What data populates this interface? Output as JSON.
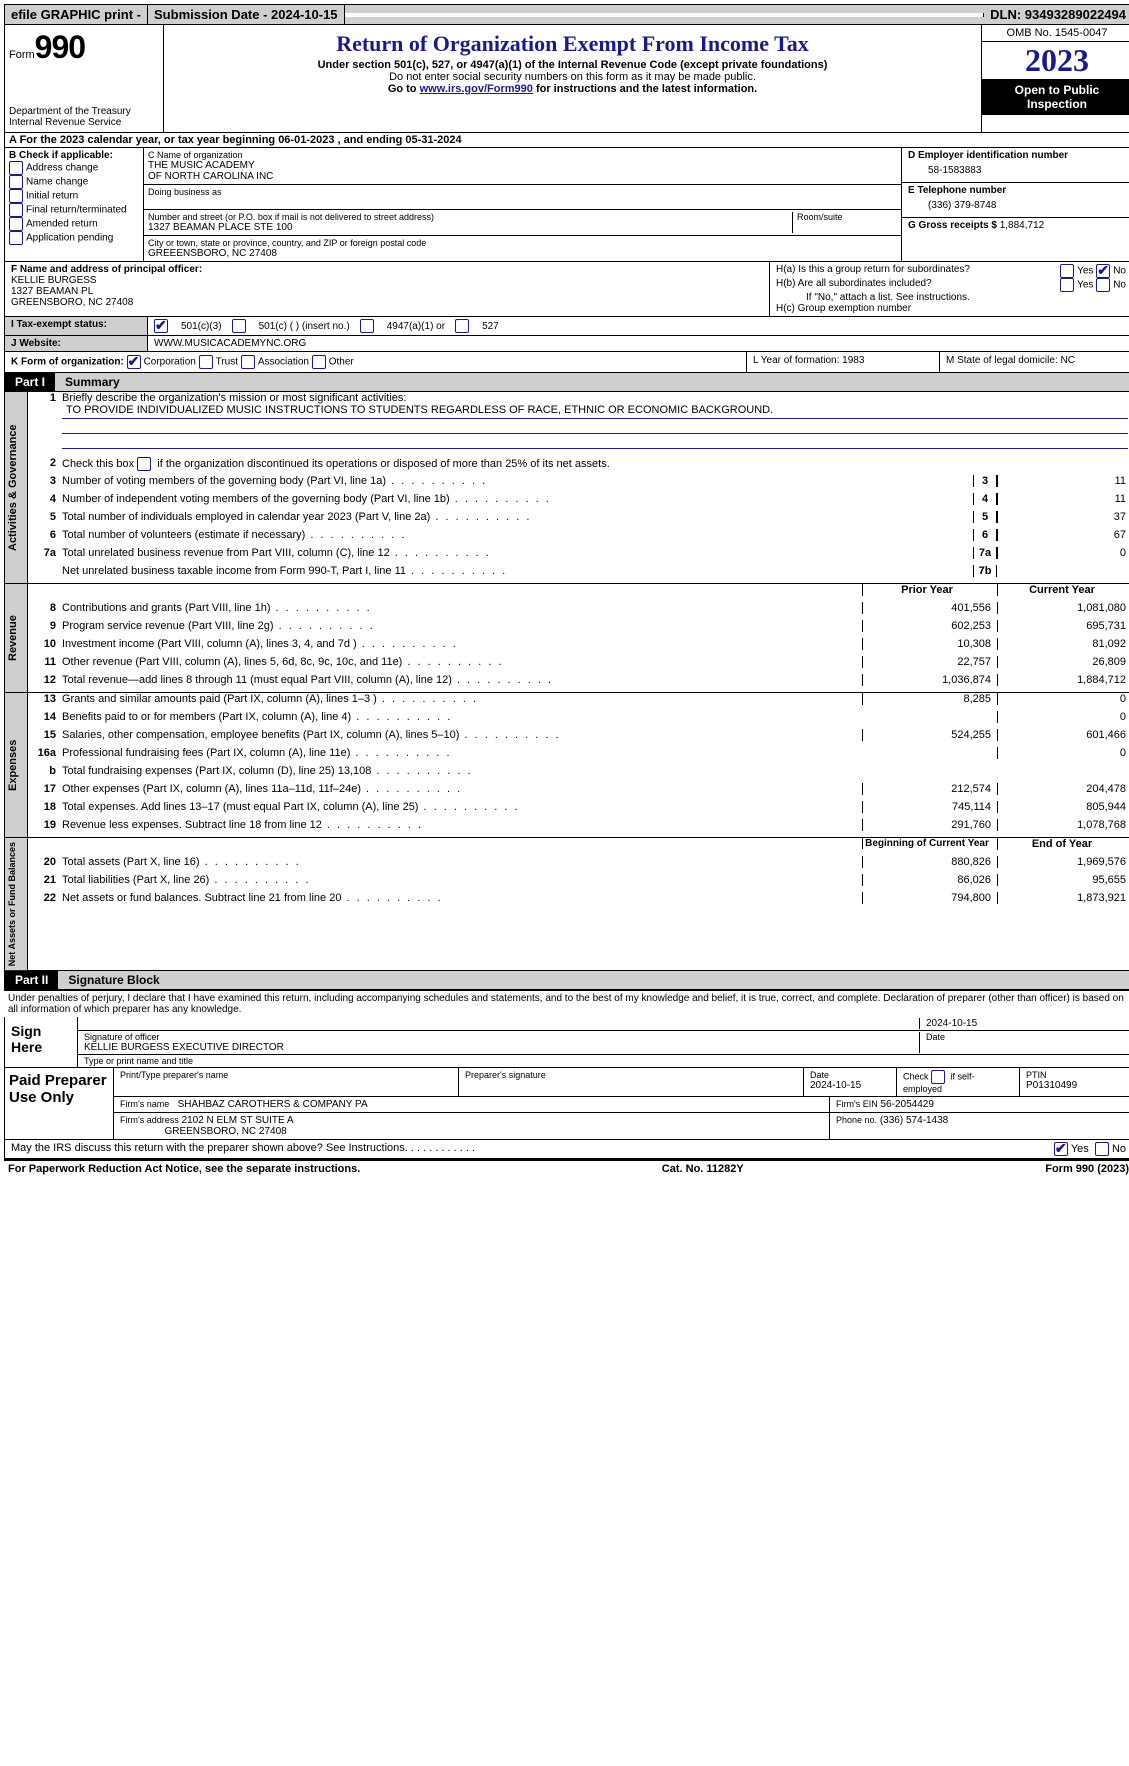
{
  "topbar": {
    "efile": "efile GRAPHIC print -",
    "submission": "Submission Date - 2024-10-15",
    "dln": "DLN: 93493289022494"
  },
  "header": {
    "form_label": "Form",
    "form_num": "990",
    "dept": "Department of the Treasury Internal Revenue Service",
    "title": "Return of Organization Exempt From Income Tax",
    "sub1": "Under section 501(c), 527, or 4947(a)(1) of the Internal Revenue Code (except private foundations)",
    "sub2": "Do not enter social security numbers on this form as it may be made public.",
    "sub3_prefix": "Go to ",
    "sub3_link": "www.irs.gov/Form990",
    "sub3_suffix": " for instructions and the latest information.",
    "omb": "OMB No. 1545-0047",
    "year": "2023",
    "open_public": "Open to Public Inspection"
  },
  "row_a": "A  For the 2023 calendar year, or tax year beginning 06-01-2023   , and ending 05-31-2024",
  "col_b": {
    "title": "B Check if applicable:",
    "items": [
      "Address change",
      "Name change",
      "Initial return",
      "Final return/terminated",
      "Amended return",
      "Application pending"
    ]
  },
  "col_c": {
    "name_label": "C Name of organization",
    "name": "THE MUSIC ACADEMY\nOF NORTH CAROLINA INC",
    "dba_label": "Doing business as",
    "addr_label": "Number and street (or P.O. box if mail is not delivered to street address)",
    "addr": "1327 BEAMAN PLACE STE 100",
    "room_label": "Room/suite",
    "city_label": "City or town, state or province, country, and ZIP or foreign postal code",
    "city": "GREEENSBORO, NC  27408"
  },
  "col_d": {
    "ein_label": "D Employer identification number",
    "ein": "58-1583883",
    "phone_label": "E Telephone number",
    "phone": "(336) 379-8748",
    "gross_label": "G Gross receipts $",
    "gross": "1,884,712"
  },
  "block_f": {
    "label": "F  Name and address of principal officer:",
    "name": "KELLIE BURGESS",
    "addr1": "1327 BEAMAN PL",
    "addr2": "GREENSBORO, NC  27408"
  },
  "block_h": {
    "a": "H(a)  Is this a group return for subordinates?",
    "b": "H(b)  Are all subordinates included?",
    "note": "If \"No,\" attach a list. See instructions.",
    "c": "H(c)  Group exemption number"
  },
  "tax_status": {
    "label": "I   Tax-exempt status:",
    "opt1": "501(c)(3)",
    "opt2": "501(c) (  ) (insert no.)",
    "opt3": "4947(a)(1) or",
    "opt4": "527"
  },
  "website": {
    "label": "J   Website:",
    "value": "WWW.MUSICACADEMYNC.ORG"
  },
  "form_org": {
    "k": "K Form of organization:",
    "opts": [
      "Corporation",
      "Trust",
      "Association",
      "Other"
    ],
    "l": "L Year of formation: 1983",
    "m": "M State of legal domicile: NC"
  },
  "parts": {
    "p1": {
      "num": "Part I",
      "title": "Summary"
    },
    "p2": {
      "num": "Part II",
      "title": "Signature Block"
    }
  },
  "mission": {
    "label": "Briefly describe the organization's mission or most significant activities:",
    "text": "TO PROVIDE INDIVIDUALIZED MUSIC INSTRUCTIONS TO STUDENTS REGARDLESS OF RACE, ETHNIC OR ECONOMIC BACKGROUND."
  },
  "gov_lines": {
    "l2": "Check this box      if the organization discontinued its operations or disposed of more than 25% of its net assets.",
    "l3": {
      "desc": "Number of voting members of the governing body (Part VI, line 1a)",
      "box": "3",
      "val": "11"
    },
    "l4": {
      "desc": "Number of independent voting members of the governing body (Part VI, line 1b)",
      "box": "4",
      "val": "11"
    },
    "l5": {
      "desc": "Total number of individuals employed in calendar year 2023 (Part V, line 2a)",
      "box": "5",
      "val": "37"
    },
    "l6": {
      "desc": "Total number of volunteers (estimate if necessary)",
      "box": "6",
      "val": "67"
    },
    "l7a": {
      "desc": "Total unrelated business revenue from Part VIII, column (C), line 12",
      "box": "7a",
      "val": "0"
    },
    "l7b": {
      "desc": "Net unrelated business taxable income from Form 990-T, Part I, line 11",
      "box": "7b",
      "val": ""
    }
  },
  "rev_header": {
    "prior": "Prior Year",
    "curr": "Current Year"
  },
  "revenue": [
    {
      "n": "8",
      "d": "Contributions and grants (Part VIII, line 1h)",
      "p": "401,556",
      "c": "1,081,080"
    },
    {
      "n": "9",
      "d": "Program service revenue (Part VIII, line 2g)",
      "p": "602,253",
      "c": "695,731"
    },
    {
      "n": "10",
      "d": "Investment income (Part VIII, column (A), lines 3, 4, and 7d )",
      "p": "10,308",
      "c": "81,092"
    },
    {
      "n": "11",
      "d": "Other revenue (Part VIII, column (A), lines 5, 6d, 8c, 9c, 10c, and 11e)",
      "p": "22,757",
      "c": "26,809"
    },
    {
      "n": "12",
      "d": "Total revenue—add lines 8 through 11 (must equal Part VIII, column (A), line 12)",
      "p": "1,036,874",
      "c": "1,884,712"
    }
  ],
  "expenses": [
    {
      "n": "13",
      "d": "Grants and similar amounts paid (Part IX, column (A), lines 1–3 )",
      "p": "8,285",
      "c": "0"
    },
    {
      "n": "14",
      "d": "Benefits paid to or for members (Part IX, column (A), line 4)",
      "p": "",
      "c": "0"
    },
    {
      "n": "15",
      "d": "Salaries, other compensation, employee benefits (Part IX, column (A), lines 5–10)",
      "p": "524,255",
      "c": "601,466"
    },
    {
      "n": "16a",
      "d": "Professional fundraising fees (Part IX, column (A), line 11e)",
      "p": "",
      "c": "0"
    },
    {
      "n": "b",
      "d": "Total fundraising expenses (Part IX, column (D), line 25) 13,108",
      "p": "grey",
      "c": "grey"
    },
    {
      "n": "17",
      "d": "Other expenses (Part IX, column (A), lines 11a–11d, 11f–24e)",
      "p": "212,574",
      "c": "204,478"
    },
    {
      "n": "18",
      "d": "Total expenses. Add lines 13–17 (must equal Part IX, column (A), line 25)",
      "p": "745,114",
      "c": "805,944"
    },
    {
      "n": "19",
      "d": "Revenue less expenses. Subtract line 18 from line 12",
      "p": "291,760",
      "c": "1,078,768"
    }
  ],
  "net_header": {
    "prior": "Beginning of Current Year",
    "curr": "End of Year"
  },
  "net": [
    {
      "n": "20",
      "d": "Total assets (Part X, line 16)",
      "p": "880,826",
      "c": "1,969,576"
    },
    {
      "n": "21",
      "d": "Total liabilities (Part X, line 26)",
      "p": "86,026",
      "c": "95,655"
    },
    {
      "n": "22",
      "d": "Net assets or fund balances. Subtract line 21 from line 20",
      "p": "794,800",
      "c": "1,873,921"
    }
  ],
  "vtabs": {
    "gov": "Activities & Governance",
    "rev": "Revenue",
    "exp": "Expenses",
    "net": "Net Assets or Fund Balances"
  },
  "perjury": "Under penalties of perjury, I declare that I have examined this return, including accompanying schedules and statements, and to the best of my knowledge and belief, it is true, correct, and complete. Declaration of preparer (other than officer) is based on all information of which preparer has any knowledge.",
  "sign": {
    "label": "Sign Here",
    "date": "2024-10-15",
    "officer_label": "Signature of officer",
    "officer": "KELLIE BURGESS EXECUTIVE DIRECTOR",
    "name_label": "Type or print name and title",
    "date_label": "Date"
  },
  "preparer": {
    "label": "Paid Preparer Use Only",
    "h1": "Print/Type preparer's name",
    "h2": "Preparer's signature",
    "h3": "Date",
    "h3v": "2024-10-15",
    "h4": "Check       if self-employed",
    "h5": "PTIN",
    "h5v": "P01310499",
    "firm_label": "Firm's name",
    "firm": "SHAHBAZ CAROTHERS & COMPANY PA",
    "ein_label": "Firm's EIN",
    "ein": "56-2054429",
    "addr_label": "Firm's address",
    "addr1": "2102 N ELM ST SUITE A",
    "addr2": "GREENSBORO, NC  27408",
    "phone_label": "Phone no.",
    "phone": "(336) 574-1438"
  },
  "discuss": "May the IRS discuss this return with the preparer shown above? See Instructions.",
  "footer": {
    "left": "For Paperwork Reduction Act Notice, see the separate instructions.",
    "mid": "Cat. No. 11282Y",
    "right": "Form 990 (2023)"
  },
  "yes": "Yes",
  "no": "No"
}
